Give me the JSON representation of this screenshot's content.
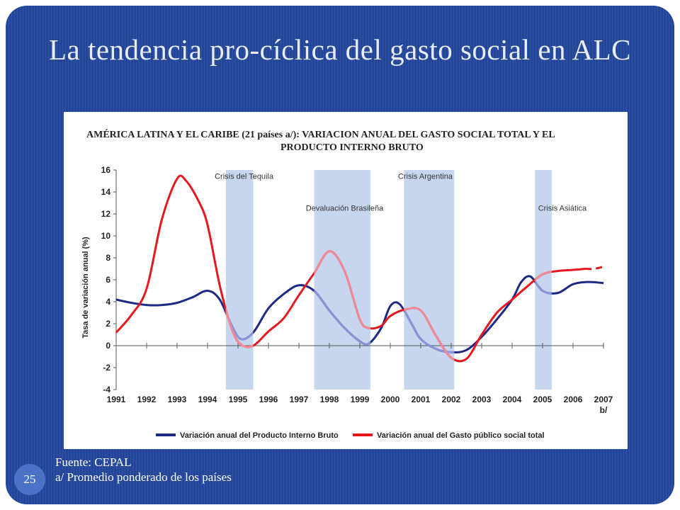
{
  "slide": {
    "title": "La tendencia pro-cíclica del gasto social en ALC",
    "source_line1": "Fuente: CEPAL",
    "source_line2": "a/ Promedio ponderado de los países",
    "slide_number": "25",
    "background_color": "#23469a"
  },
  "chart_data": {
    "type": "line",
    "title": "AMÉRICA LATINA Y EL CARIBE (21 países a/): VARIACION ANUAL DEL GASTO SOCIAL TOTAL Y EL",
    "subtitle": "PRODUCTO INTERNO BRUTO",
    "ylabel": "Tasa de variación anual (%)",
    "xlabel": "",
    "ylim": [
      -4,
      16
    ],
    "yticks": [
      "16",
      "14",
      "12",
      "10",
      "8",
      "6",
      "4",
      "2",
      "0",
      "-2",
      "-4"
    ],
    "xlim": [
      1991,
      2007
    ],
    "xticks": [
      "1991",
      "1992",
      "1993",
      "1994",
      "1995",
      "1996",
      "1997",
      "1998",
      "1999",
      "2000",
      "2001",
      "2002",
      "2003",
      "2004",
      "2005",
      "2006",
      "2007"
    ],
    "xtick_suffix": "b/",
    "grid": false,
    "legend_position": "bottom",
    "shaded_periods": [
      {
        "from": 1994.6,
        "to": 1995.5
      },
      {
        "from": 1997.5,
        "to": 1999.35
      },
      {
        "from": 2000.45,
        "to": 2002.1
      },
      {
        "from": 2004.75,
        "to": 2005.3
      }
    ],
    "annotations": [
      {
        "text": "Crisis   del Tequila",
        "x": 1995.2,
        "y": 15.2
      },
      {
        "text": "Crisis Argentina",
        "x": 2001.15,
        "y": 15.2
      },
      {
        "text": "Devaluación Brasileña",
        "x": 1998.5,
        "y": 12.3
      },
      {
        "text": "Crisis Asiática",
        "x": 2005.65,
        "y": 12.3
      }
    ],
    "series": [
      {
        "name": "Variación anual del Producto Interno Bruto",
        "color": "#1c2a86",
        "x": [
          1991,
          1991.5,
          1992,
          1992.5,
          1993,
          1993.5,
          1994,
          1994.4,
          1994.8,
          1995.1,
          1995.5,
          1996,
          1996.5,
          1997,
          1997.5,
          1998,
          1998.5,
          1999,
          1999.3,
          1999.7,
          2000,
          2000.3,
          2000.7,
          2001,
          2001.5,
          2002,
          2002.5,
          2003,
          2003.5,
          2004,
          2004.3,
          2004.6,
          2005,
          2005.5,
          2006,
          2006.5,
          2007
        ],
        "y": [
          4.2,
          3.9,
          3.7,
          3.7,
          3.9,
          4.4,
          5.0,
          4.2,
          1.8,
          0.6,
          1.2,
          3.4,
          4.7,
          5.5,
          5.0,
          3.2,
          1.6,
          0.4,
          0.2,
          1.6,
          3.6,
          3.8,
          2.0,
          0.6,
          -0.3,
          -0.6,
          -0.4,
          0.8,
          2.4,
          4.2,
          5.8,
          6.3,
          5.0,
          4.8,
          5.6,
          5.8,
          5.7
        ]
      },
      {
        "name": "Variación anual del Gasto público social total",
        "color": "#e8171e",
        "x": [
          1991,
          1991.5,
          1992,
          1992.5,
          1993,
          1993.3,
          1993.7,
          1994,
          1994.4,
          1994.8,
          1995.1,
          1995.5,
          1996,
          1996.5,
          1997,
          1997.5,
          1998,
          1998.5,
          1999,
          1999.3,
          1999.7,
          2000,
          2000.5,
          2001,
          2001.5,
          2002,
          2002.5,
          2003,
          2003.5,
          2004,
          2004.5,
          2005,
          2005.5,
          2006,
          2006.4,
          2006.7,
          2007
        ],
        "y": [
          1.2,
          2.8,
          5.2,
          11.5,
          15.2,
          15.0,
          13.2,
          11.0,
          5.5,
          1.5,
          0.1,
          0.0,
          1.3,
          2.5,
          4.6,
          6.6,
          8.6,
          6.8,
          2.4,
          1.6,
          1.8,
          2.7,
          3.3,
          3.2,
          0.9,
          -1.1,
          -1.2,
          1.0,
          3.0,
          4.2,
          5.4,
          6.5,
          6.8,
          6.9,
          7.0,
          7.0,
          7.2
        ]
      }
    ],
    "projection_from_x": 2006.4
  }
}
